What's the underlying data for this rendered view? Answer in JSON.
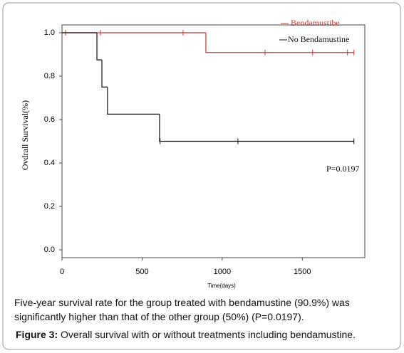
{
  "chart_data": {
    "type": "survival-step",
    "y_label": "Ovdrall Survival(%)",
    "x_label": "Time(days)",
    "annotation": "P=0.0197",
    "xlim": [
      0,
      1890
    ],
    "ylim": [
      -0.036,
      1.036
    ],
    "xticks": [
      0,
      500,
      1000,
      1500
    ],
    "yticks": [
      {
        "value": 0,
        "label": "0.0"
      },
      {
        "value": 0.2,
        "label": "0.2"
      },
      {
        "value": 0.4,
        "label": "0.4"
      },
      {
        "value": 0.6,
        "label": "0.6"
      },
      {
        "value": 0.8,
        "label": "0.8"
      },
      {
        "value": 1,
        "label": "1.0"
      }
    ],
    "legend": "top-right",
    "series": [
      {
        "name": "Bendamustibe",
        "color": "#c8373a",
        "x": [
          0,
          898
        ],
        "values": [
          1,
          0.909
        ],
        "censored_x": [
          22,
          240,
          756,
          1267,
          1564,
          1782,
          1822
        ],
        "censored_values": [
          1,
          1,
          1,
          0.909,
          0.909,
          0.909,
          0.909
        ]
      },
      {
        "name": "No Bendamustine",
        "color": "#111111",
        "x": [
          0,
          218,
          249,
          284,
          609
        ],
        "values": [
          1,
          0.875,
          0.75,
          0.625,
          0.5
        ],
        "censored_x": [
          612,
          1098,
          1822
        ],
        "censored_values": [
          0.5,
          0.5,
          0.5
        ]
      }
    ]
  },
  "caption": {
    "text": "Five-year survival rate for the group treated with bendamustine (90.9%) was significantly higher than that of the other group (50%) (P=0.0197).",
    "figure_label": "Figure 3:",
    "figure_text": "Overall survival with or without treatments including bendamustine."
  }
}
